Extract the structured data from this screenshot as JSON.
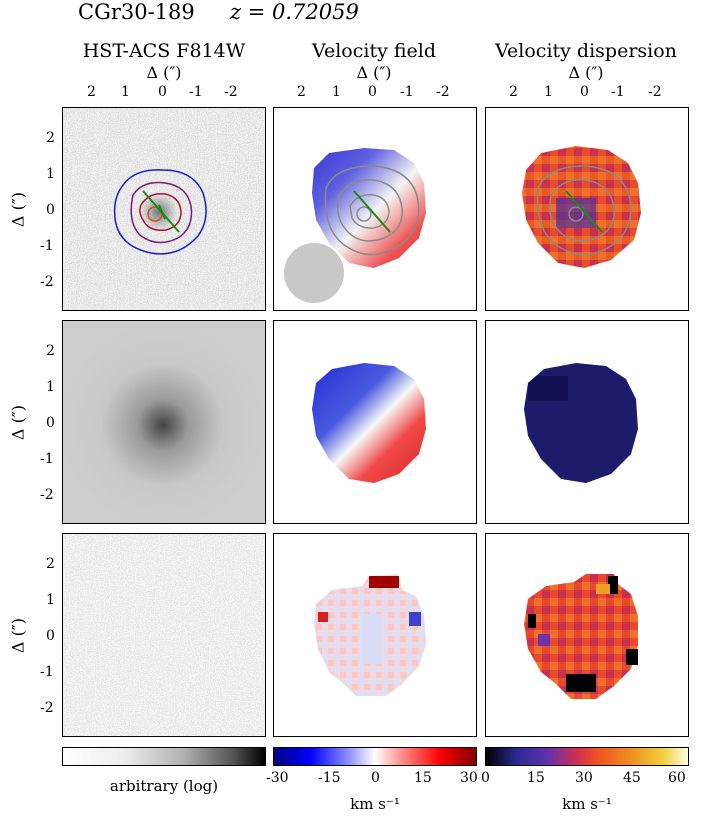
{
  "header": {
    "object": "CGr30-189",
    "redshift": "z = 0.72059"
  },
  "columns": [
    {
      "title": "HST-ACS F814W"
    },
    {
      "title": "Velocity field"
    },
    {
      "title": "Velocity dispersion"
    }
  ],
  "axes": {
    "delta_label": "Δ   (″)",
    "x_ticks": [
      "2",
      "1",
      "0",
      "-1",
      "-2"
    ],
    "y_ticks": [
      "2",
      "1",
      "0",
      "-1",
      "-2"
    ],
    "y_label": "Δ   (″)"
  },
  "colorbars": [
    {
      "label": "arbitrary (log)",
      "ticks": []
    },
    {
      "label": "km s⁻¹",
      "ticks": [
        "-30",
        "-15",
        "0",
        "15",
        "30"
      ]
    },
    {
      "label": "km s⁻¹",
      "ticks": [
        "0",
        "15",
        "30",
        "45",
        "60"
      ]
    }
  ],
  "colors": {
    "contour_outer": "#1a1acc",
    "contour_mid": "#7a1a7a",
    "contour_inner": "#b01030",
    "center_ring": "#d05018",
    "pa_line": "#1a8a1a",
    "psf_disk": "#c8c8c8",
    "overlay_contour": "#8a8a8a"
  }
}
